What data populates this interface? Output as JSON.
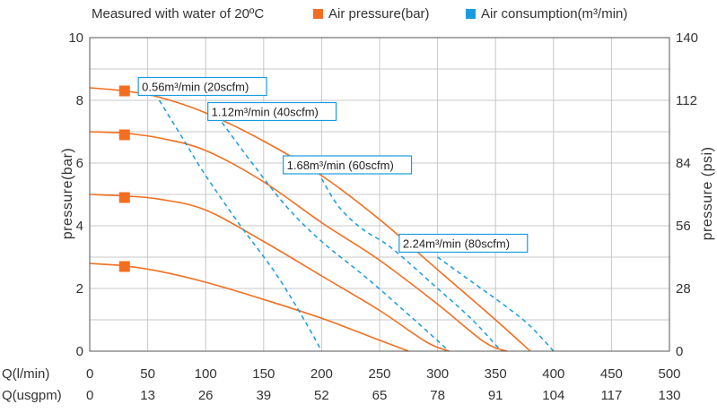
{
  "chart_data": {
    "type": "line",
    "note": "Measured with water of 20ºC",
    "legend": [
      {
        "label": "Air pressure(bar)",
        "color": "#f26f21",
        "marker": "square"
      },
      {
        "label": "Air consumption(m³/min)",
        "color": "#1a9be0",
        "marker": "square"
      }
    ],
    "ylabel_left": "pressure(bar)",
    "ylabel_right": "pressure (psi)",
    "ylim": [
      0,
      10
    ],
    "yticks_left": [
      "0",
      "2",
      "4",
      "6",
      "8",
      "10"
    ],
    "yticks_right": [
      "0",
      "28",
      "56",
      "84",
      "112",
      "140"
    ],
    "xlim": [
      0,
      500
    ],
    "x_rows": [
      {
        "label": "Q(l/min)",
        "ticks": [
          "0",
          "50",
          "100",
          "150",
          "200",
          "250",
          "300",
          "350",
          "400",
          "450",
          "500"
        ]
      },
      {
        "label": "Q(usgpm)",
        "ticks": [
          "0",
          "13",
          "26",
          "39",
          "52",
          "65",
          "78",
          "91",
          "104",
          "117",
          "130"
        ]
      }
    ],
    "grid": true,
    "series": [
      {
        "name": "Air pressure(bar)",
        "style": "solid",
        "color": "#f26f21",
        "marker_x": 30,
        "marker_y": 8.3,
        "x": [
          0,
          30,
          60,
          100,
          150,
          200,
          250,
          300,
          350,
          380
        ],
        "y": [
          8.4,
          8.3,
          8.1,
          7.6,
          6.7,
          5.6,
          4.2,
          2.6,
          1.0,
          0
        ]
      },
      {
        "name": "Air pressure(bar)",
        "style": "solid",
        "color": "#f26f21",
        "marker_x": 30,
        "marker_y": 6.9,
        "x": [
          0,
          30,
          60,
          100,
          150,
          200,
          250,
          300,
          340,
          360
        ],
        "y": [
          7.0,
          6.95,
          6.8,
          6.4,
          5.4,
          4.1,
          2.9,
          1.5,
          0.3,
          0
        ]
      },
      {
        "name": "Air pressure(bar)",
        "style": "solid",
        "color": "#f26f21",
        "marker_x": 30,
        "marker_y": 4.9,
        "x": [
          0,
          30,
          60,
          100,
          150,
          200,
          250,
          290,
          310
        ],
        "y": [
          5.0,
          4.95,
          4.85,
          4.5,
          3.5,
          2.4,
          1.3,
          0.3,
          0
        ]
      },
      {
        "name": "Air pressure(bar)",
        "style": "solid",
        "color": "#f26f21",
        "marker_x": 30,
        "marker_y": 2.7,
        "x": [
          0,
          30,
          60,
          100,
          150,
          200,
          250,
          275
        ],
        "y": [
          2.8,
          2.72,
          2.55,
          2.2,
          1.65,
          1.05,
          0.35,
          0
        ]
      },
      {
        "name": "Air consumption(m³/min)",
        "style": "dashed",
        "color": "#1a9be0",
        "x": [
          60,
          80,
          100,
          130,
          160,
          185,
          200
        ],
        "y": [
          8.0,
          6.8,
          5.6,
          4.0,
          2.5,
          1.0,
          0
        ]
      },
      {
        "name": "Air consumption(m³/min)",
        "style": "dashed",
        "color": "#1a9be0",
        "x": [
          110,
          140,
          170,
          200,
          240,
          280,
          310
        ],
        "y": [
          7.5,
          6.0,
          4.6,
          3.5,
          2.3,
          1.0,
          0
        ]
      },
      {
        "name": "Air consumption(m³/min)",
        "style": "dashed",
        "color": "#1a9be0",
        "x": [
          200,
          215,
          235,
          260,
          300,
          330,
          355
        ],
        "y": [
          5.5,
          4.6,
          3.9,
          3.3,
          2.0,
          1.0,
          0
        ]
      },
      {
        "name": "Air consumption(m³/min)",
        "style": "dashed",
        "color": "#1a9be0",
        "x": [
          300,
          330,
          360,
          380,
          400
        ],
        "y": [
          3.0,
          2.2,
          1.4,
          0.8,
          0
        ]
      }
    ],
    "annotations": [
      {
        "text": "0.56m³/min (20scfm)",
        "x": 45,
        "y": 8.3
      },
      {
        "text": "1.12m³/min (40scfm)",
        "x": 105,
        "y": 7.5
      },
      {
        "text": "1.68m³/min (60scfm)",
        "x": 170,
        "y": 5.8
      },
      {
        "text": "2.24m³/min (80scfm)",
        "x": 270,
        "y": 3.3
      }
    ]
  }
}
